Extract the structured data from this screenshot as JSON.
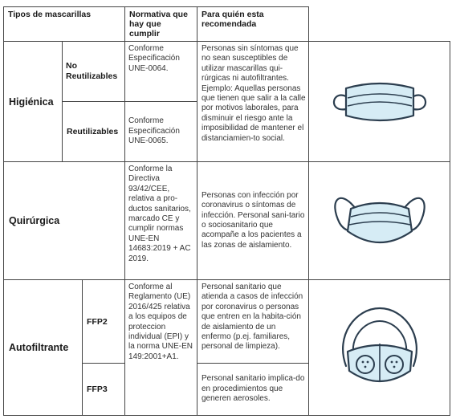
{
  "headers": {
    "tipos": "Tipos de mascarillas",
    "normativa": "Normativa que hay que cumplir",
    "para_quien": "Para quién esta recomendada"
  },
  "rows": {
    "higienica": {
      "type": "Higiénica",
      "no_reutil": {
        "label": "No Reutilizables",
        "norma": "Conforme Especificación UNE-0064."
      },
      "reutil": {
        "label": "Reutilizables",
        "norma": "Conforme Especificación UNE-0065."
      },
      "para": "Personas sin síntomas que no sean susceptibles de utilizar mascarillas qui-rúrgicas ni autofiltrantes. Ejemplo: Aquellas personas que tienen que salir a la calle por motivos laborales, para disminuir el riesgo ante la imposibilidad de mantener el distanciamien-to social.",
      "icon": "hygienic-mask-icon"
    },
    "quirurgica": {
      "type": "Quirúrgica",
      "norma": "Conforme la Directiva 93/42/CEE, relativa a pro-ductos sanitarios, marcado CE y cumplir normas UNE-EN 14683:2019 + AC 2019.",
      "para": "Personas con infección por coronavirus o síntomas de infección. Personal sani-tario o sociosanitario que acompañe a los pacientes a las zonas de aislamiento.",
      "icon": "surgical-mask-icon"
    },
    "autofiltrante": {
      "type": "Autofiltrante",
      "ffp2": "FFP2",
      "ffp3": "FFP3",
      "norma": "Conforme al Reglamento (UE) 2016/425 relativa a los equipos de proteccion individual (EPI) y la norma UNE-EN 149:2001+A1.",
      "para_ffp2": "Personal sanitario que atienda a casos de infección por coronavirus o personas que entren en la habita-ción de aislamiento de un enfermo (p.ej. familiares, personal de limpieza).",
      "para_ffp3": "Personal sanitario implica-do en procedimientos que generen aerosoles.",
      "icon": "ffp-respirator-icon"
    }
  },
  "colors": {
    "mask_fill": "#d6ecf5",
    "mask_stroke": "#2c3e4f",
    "border": "#444444"
  }
}
